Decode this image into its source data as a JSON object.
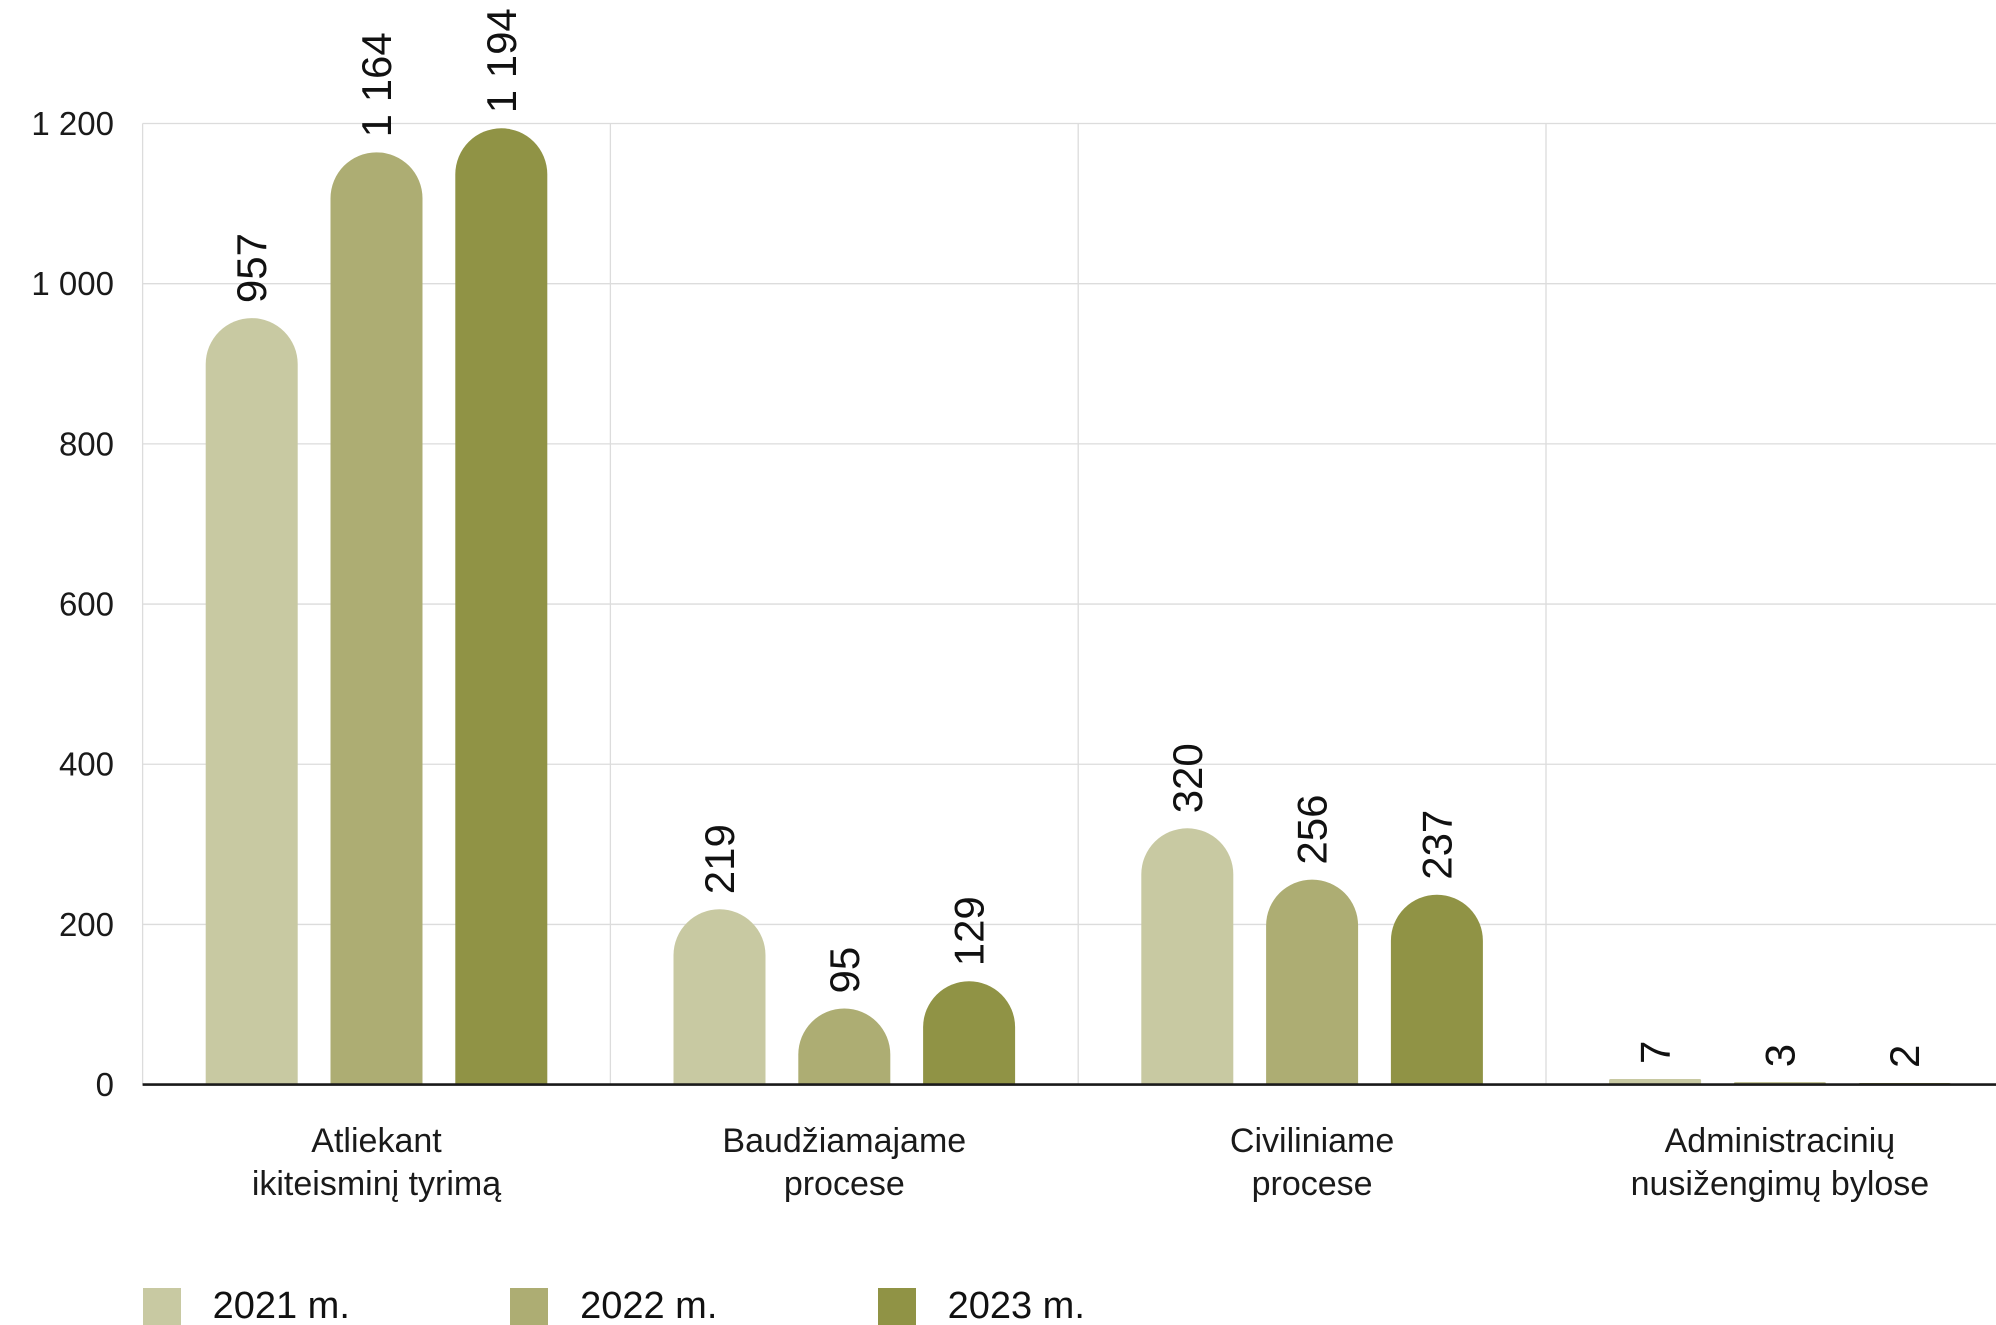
{
  "chart_data": {
    "type": "bar",
    "categories": [
      "Atliekant\nikiteisminį tyrimą",
      "Baudžiamajame\nprocese",
      "Civiliniame\nprocese",
      "Administracinių\nnusižengimų bylose"
    ],
    "series": [
      {
        "name": "2021 m.",
        "color": "#c8c9a2",
        "values": [
          957,
          219,
          320,
          7
        ],
        "data_labels": [
          "957",
          "219",
          "320",
          "7"
        ]
      },
      {
        "name": "2022 m.",
        "color": "#adad73",
        "values": [
          1164,
          95,
          256,
          3
        ],
        "data_labels": [
          "1 164",
          "95",
          "256",
          "3"
        ]
      },
      {
        "name": "2023 m.",
        "color": "#909345",
        "values": [
          1194,
          129,
          237,
          2
        ],
        "data_labels": [
          "1 194",
          "129",
          "237",
          "2"
        ]
      }
    ],
    "ylim": [
      0,
      1200
    ],
    "yticks": [
      0,
      200,
      400,
      600,
      800,
      1000,
      1200
    ],
    "ytick_labels": [
      "0",
      "200",
      "400",
      "600",
      "800",
      "1 000",
      "1 200"
    ],
    "grid": true,
    "legend": "bottom-left"
  }
}
